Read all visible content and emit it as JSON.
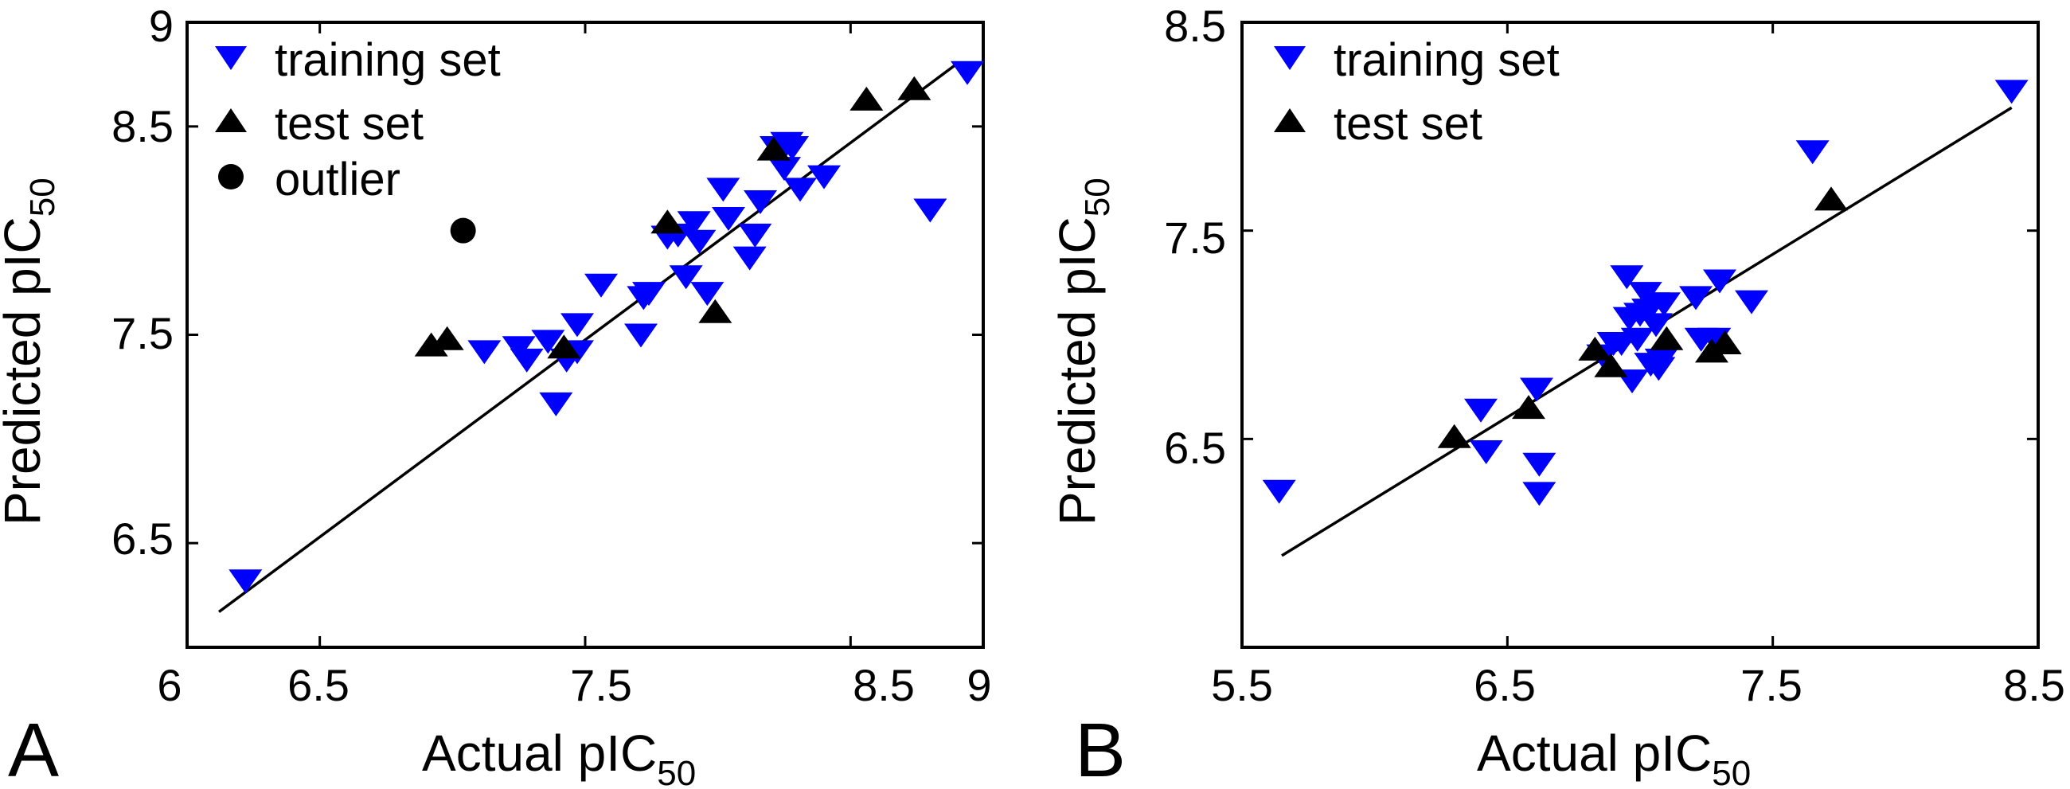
{
  "chart_data": [
    {
      "type": "scatter",
      "panel_label": "A",
      "xlabel": "Actual pIC",
      "xlabel_sub": "50",
      "ylabel": "Predicted pIC",
      "ylabel_sub": "50",
      "xlim": [
        6,
        9
      ],
      "ylim": [
        6,
        9
      ],
      "xticks": [
        "6",
        "6.5",
        "7.5",
        "8.5",
        "9"
      ],
      "yticks": [
        "6.5",
        "7.5",
        "8.5",
        "9"
      ],
      "legend": [
        "training set",
        "test set",
        "outlier"
      ],
      "legend_position": "top-left",
      "fit_line": {
        "x": [
          6.12,
          8.9
        ],
        "y": [
          6.17,
          8.8
        ]
      },
      "series": [
        {
          "name": "training set",
          "marker": "triangle-down",
          "color": "#0000ff",
          "points": [
            [
              6.22,
              6.32
            ],
            [
              7.12,
              7.42
            ],
            [
              7.25,
              7.44
            ],
            [
              7.28,
              7.38
            ],
            [
              7.36,
              7.47
            ],
            [
              7.39,
              7.17
            ],
            [
              7.43,
              7.38
            ],
            [
              7.47,
              7.42
            ],
            [
              7.47,
              7.55
            ],
            [
              7.56,
              7.74
            ],
            [
              7.71,
              7.5
            ],
            [
              7.72,
              7.68
            ],
            [
              7.74,
              7.7
            ],
            [
              7.81,
              7.97
            ],
            [
              7.85,
              7.98
            ],
            [
              7.88,
              7.78
            ],
            [
              7.91,
              8.04
            ],
            [
              7.93,
              7.95
            ],
            [
              7.96,
              7.7
            ],
            [
              8.02,
              8.2
            ],
            [
              8.04,
              8.06
            ],
            [
              8.12,
              7.87
            ],
            [
              8.14,
              7.98
            ],
            [
              8.16,
              8.14
            ],
            [
              8.22,
              8.4
            ],
            [
              8.25,
              8.3
            ],
            [
              8.26,
              8.42
            ],
            [
              8.28,
              8.4
            ],
            [
              8.31,
              8.2
            ],
            [
              8.4,
              8.26
            ],
            [
              8.8,
              8.1
            ],
            [
              8.94,
              8.76
            ]
          ]
        },
        {
          "name": "test set",
          "marker": "triangle-up",
          "color": "#000000",
          "points": [
            [
              6.92,
              7.45
            ],
            [
              6.98,
              7.48
            ],
            [
              7.42,
              7.44
            ],
            [
              7.81,
              8.04
            ],
            [
              7.99,
              7.61
            ],
            [
              8.21,
              8.39
            ],
            [
              8.56,
              8.63
            ],
            [
              8.74,
              8.68
            ]
          ]
        },
        {
          "name": "outlier",
          "marker": "circle",
          "color": "#000000",
          "points": [
            [
              7.04,
              8.0
            ]
          ]
        }
      ]
    },
    {
      "type": "scatter",
      "panel_label": "B",
      "xlabel": "Actual pIC",
      "xlabel_sub": "50",
      "ylabel": "Predicted pIC",
      "ylabel_sub": "50",
      "xlim": [
        5.5,
        8.5
      ],
      "ylim": [
        5.5,
        8.5
      ],
      "xticks": [
        "5.5",
        "6.5",
        "7.5",
        "8.5"
      ],
      "yticks": [
        "6.5",
        "7.5",
        "8.5"
      ],
      "legend": [
        "training set",
        "test set"
      ],
      "legend_position": "top-left",
      "fit_line": {
        "x": [
          5.65,
          8.4
        ],
        "y": [
          5.94,
          8.09
        ]
      },
      "series": [
        {
          "name": "training set",
          "marker": "triangle-down",
          "color": "#0000ff",
          "points": [
            [
              5.64,
              6.25
            ],
            [
              6.4,
              6.64
            ],
            [
              6.42,
              6.44
            ],
            [
              6.61,
              6.74
            ],
            [
              6.62,
              6.38
            ],
            [
              6.62,
              6.24
            ],
            [
              6.86,
              6.9
            ],
            [
              6.9,
              6.96
            ],
            [
              6.93,
              6.96
            ],
            [
              6.95,
              7.28
            ],
            [
              6.96,
              7.08
            ],
            [
              6.97,
              6.78
            ],
            [
              6.99,
              6.98
            ],
            [
              7.0,
              7.1
            ],
            [
              7.02,
              7.2
            ],
            [
              7.03,
              7.12
            ],
            [
              7.04,
              6.86
            ],
            [
              7.05,
              7.15
            ],
            [
              7.06,
              7.05
            ],
            [
              7.07,
              6.84
            ],
            [
              7.08,
              6.88
            ],
            [
              7.09,
              7.15
            ],
            [
              7.21,
              7.18
            ],
            [
              7.23,
              6.98
            ],
            [
              7.28,
              6.98
            ],
            [
              7.3,
              7.26
            ],
            [
              7.42,
              7.16
            ],
            [
              7.65,
              7.88
            ],
            [
              8.4,
              8.17
            ]
          ]
        },
        {
          "name": "test set",
          "marker": "triangle-up",
          "color": "#000000",
          "points": [
            [
              6.3,
              6.51
            ],
            [
              6.58,
              6.65
            ],
            [
              6.83,
              6.93
            ],
            [
              6.89,
              6.85
            ],
            [
              7.1,
              6.98
            ],
            [
              7.27,
              6.92
            ],
            [
              7.32,
              6.96
            ],
            [
              7.72,
              7.65
            ]
          ]
        }
      ]
    }
  ]
}
